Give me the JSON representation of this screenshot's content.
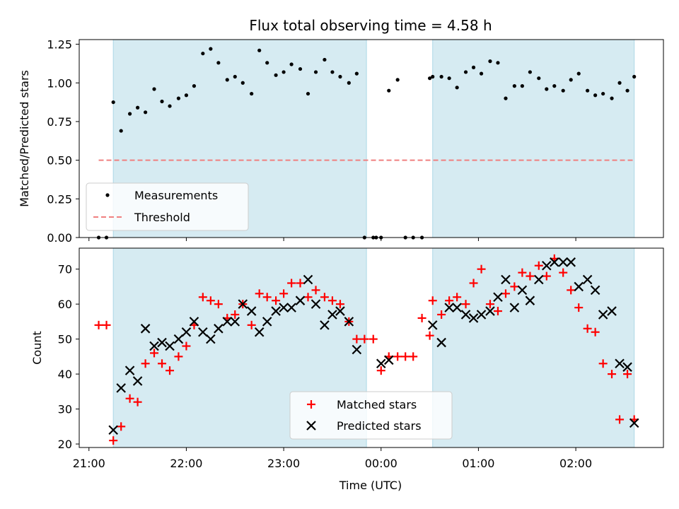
{
  "chart_data": [
    {
      "type": "scatter",
      "title": "Flux total observing time = 4.58 h",
      "xlabel": "",
      "ylabel": "Matched/Predicted stars",
      "ylim": [
        0,
        1.28
      ],
      "yticks": [
        "0.00",
        "0.25",
        "0.50",
        "0.75",
        "1.00",
        "1.25"
      ],
      "ytick_values": [
        0,
        0.25,
        0.5,
        0.75,
        1.0,
        1.25
      ],
      "xlim_hours": [
        -3.1,
        2.9
      ],
      "shaded_spans_hours": [
        [
          -2.75,
          -0.15
        ],
        [
          0.53,
          2.6
        ]
      ],
      "shade_color": "#add8e6",
      "threshold": {
        "value": 0.5,
        "from": -2.9,
        "to": 2.6,
        "color": "#f08080"
      },
      "legend": {
        "position": "lower-left",
        "entries": [
          "Measurements",
          "Threshold"
        ]
      },
      "series": [
        {
          "name": "Measurements",
          "color": "#000000",
          "x": [
            -2.9,
            -2.82,
            -2.75,
            -2.67,
            -2.58,
            -2.5,
            -2.42,
            -2.33,
            -2.25,
            -2.17,
            -2.08,
            -2.0,
            -1.92,
            -1.83,
            -1.75,
            -1.67,
            -1.58,
            -1.5,
            -1.42,
            -1.33,
            -1.25,
            -1.17,
            -1.08,
            -1.0,
            -0.92,
            -0.83,
            -0.75,
            -0.67,
            -0.58,
            -0.5,
            -0.42,
            -0.33,
            -0.25,
            -0.17,
            -0.08,
            -0.05,
            0.0,
            0.08,
            0.17,
            0.25,
            0.33,
            0.42,
            0.5,
            0.53,
            0.62,
            0.7,
            0.78,
            0.87,
            0.95,
            1.03,
            1.12,
            1.2,
            1.28,
            1.37,
            1.45,
            1.53,
            1.62,
            1.7,
            1.78,
            1.87,
            1.95,
            2.03,
            2.12,
            2.2,
            2.28,
            2.37,
            2.45,
            2.53,
            2.6
          ],
          "y": [
            0.0,
            0.0,
            0.875,
            0.69,
            0.8,
            0.84,
            0.81,
            0.96,
            0.88,
            0.85,
            0.9,
            0.92,
            0.98,
            1.19,
            1.22,
            1.13,
            1.02,
            1.04,
            1.0,
            0.93,
            1.21,
            1.13,
            1.05,
            1.07,
            1.12,
            1.09,
            0.93,
            1.07,
            1.15,
            1.07,
            1.04,
            1.0,
            1.06,
            0.0,
            0.0,
            0.0,
            0.0,
            0.95,
            1.02,
            0.0,
            0.0,
            0.0,
            1.03,
            1.04,
            1.04,
            1.03,
            0.97,
            1.07,
            1.1,
            1.06,
            1.14,
            1.13,
            0.9,
            0.98,
            0.98,
            1.07,
            1.03,
            0.96,
            0.98,
            0.95,
            1.02,
            1.06,
            0.95,
            0.92,
            0.93,
            0.9,
            1.0,
            0.95,
            1.04
          ]
        }
      ]
    },
    {
      "type": "scatter",
      "title": "",
      "xlabel": "Time (UTC)",
      "ylabel": "Count",
      "ylim": [
        19,
        76
      ],
      "yticks": [
        "20",
        "30",
        "40",
        "50",
        "60",
        "70"
      ],
      "ytick_values": [
        20,
        30,
        40,
        50,
        60,
        70
      ],
      "xticks": [
        "21:00",
        "22:00",
        "23:00",
        "00:00",
        "01:00",
        "02:00"
      ],
      "xtick_hours": [
        -3,
        -2,
        -1,
        0,
        1,
        2
      ],
      "xlim_hours": [
        -3.1,
        2.9
      ],
      "shaded_spans_hours": [
        [
          -2.75,
          -0.15
        ],
        [
          0.53,
          2.6
        ]
      ],
      "legend": {
        "position": "lower-center",
        "entries": [
          "Matched stars",
          "Predicted stars"
        ]
      },
      "series": [
        {
          "name": "Matched stars",
          "marker": "plus",
          "color": "#ff0000",
          "x": [
            -2.9,
            -2.82,
            -2.75,
            -2.67,
            -2.58,
            -2.5,
            -2.42,
            -2.33,
            -2.25,
            -2.17,
            -2.08,
            -2.0,
            -1.92,
            -1.83,
            -1.75,
            -1.67,
            -1.58,
            -1.5,
            -1.42,
            -1.33,
            -1.25,
            -1.17,
            -1.08,
            -1.0,
            -0.92,
            -0.83,
            -0.75,
            -0.67,
            -0.58,
            -0.5,
            -0.42,
            -0.33,
            -0.25,
            -0.17,
            -0.08,
            0.0,
            0.08,
            0.17,
            0.25,
            0.33,
            0.42,
            0.5,
            0.53,
            0.62,
            0.7,
            0.78,
            0.87,
            0.95,
            1.03,
            1.12,
            1.2,
            1.28,
            1.37,
            1.45,
            1.53,
            1.62,
            1.7,
            1.78,
            1.87,
            1.95,
            2.03,
            2.12,
            2.2,
            2.28,
            2.37,
            2.45,
            2.53,
            2.6
          ],
          "y": [
            54,
            54,
            21,
            25,
            33,
            32,
            43,
            46,
            43,
            41,
            45,
            48,
            54,
            62,
            61,
            60,
            56,
            57,
            60,
            54,
            63,
            62,
            61,
            63,
            66,
            66,
            62,
            64,
            62,
            61,
            60,
            55,
            50,
            50,
            50,
            41,
            45,
            45,
            45,
            45,
            56,
            51,
            61,
            57,
            61,
            62,
            60,
            66,
            70,
            60,
            58,
            63,
            65,
            69,
            68,
            71,
            68,
            73,
            69,
            64,
            59,
            53,
            52,
            43,
            40,
            27,
            40,
            27
          ]
        },
        {
          "name": "Predicted stars",
          "marker": "x",
          "color": "#000000",
          "x": [
            -2.75,
            -2.67,
            -2.58,
            -2.5,
            -2.42,
            -2.33,
            -2.25,
            -2.17,
            -2.08,
            -2.0,
            -1.92,
            -1.83,
            -1.75,
            -1.67,
            -1.58,
            -1.5,
            -1.42,
            -1.33,
            -1.25,
            -1.17,
            -1.08,
            -1.0,
            -0.92,
            -0.83,
            -0.75,
            -0.67,
            -0.58,
            -0.5,
            -0.42,
            -0.33,
            -0.25,
            0.0,
            0.08,
            0.53,
            0.62,
            0.7,
            0.78,
            0.87,
            0.95,
            1.03,
            1.12,
            1.2,
            1.28,
            1.37,
            1.45,
            1.53,
            1.62,
            1.7,
            1.78,
            1.87,
            1.95,
            2.03,
            2.12,
            2.2,
            2.28,
            2.37,
            2.45,
            2.53,
            2.6
          ],
          "y": [
            24,
            36,
            41,
            38,
            53,
            48,
            49,
            48,
            50,
            52,
            55,
            52,
            50,
            53,
            55,
            55,
            60,
            58,
            52,
            55,
            58,
            59,
            59,
            61,
            67,
            60,
            54,
            57,
            58,
            55,
            47,
            43,
            44,
            54,
            49,
            59,
            59,
            57,
            56,
            57,
            58,
            62,
            67,
            59,
            64,
            61,
            67,
            71,
            72,
            72,
            72,
            65,
            67,
            64,
            57,
            58,
            43,
            42,
            26
          ]
        }
      ]
    }
  ]
}
